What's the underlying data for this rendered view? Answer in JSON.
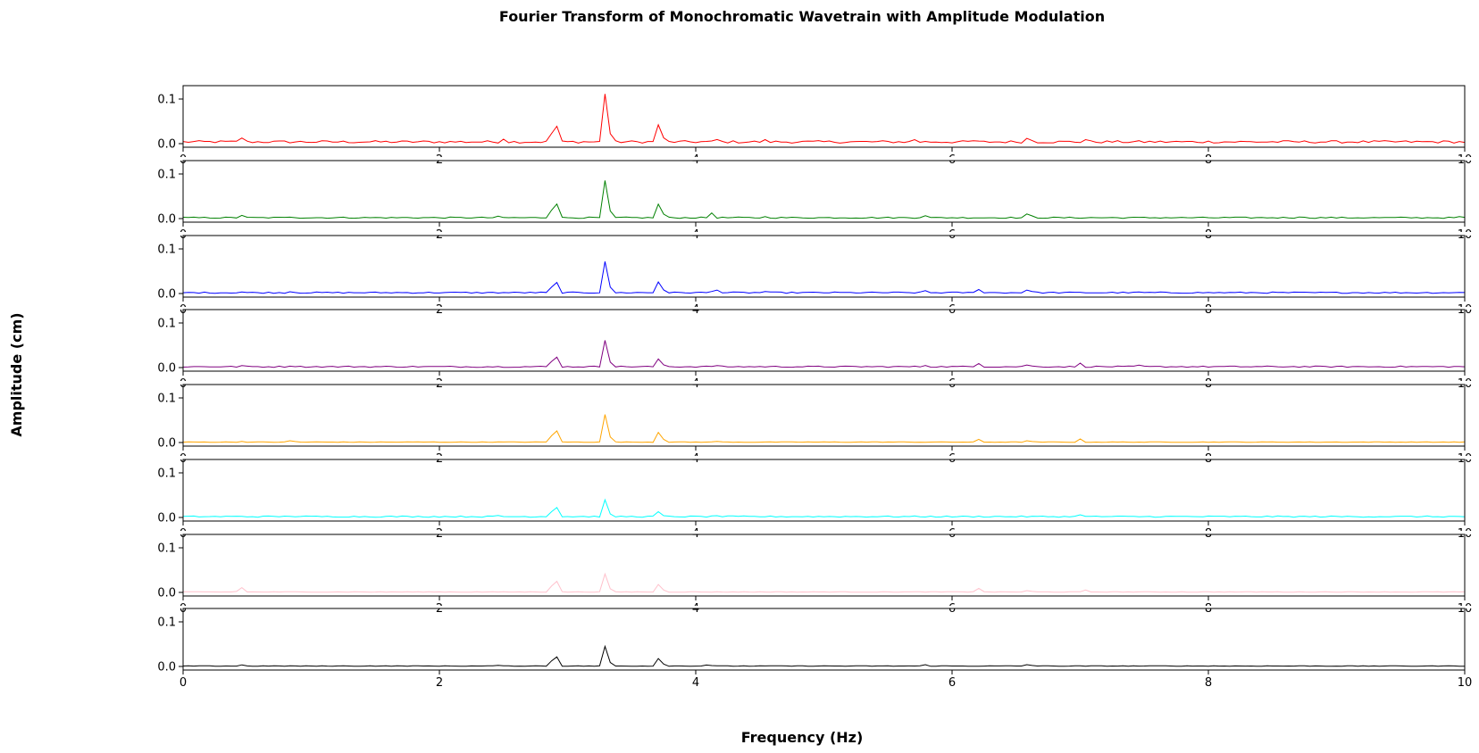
{
  "chart_data": {
    "type": "line",
    "title": "Fourier Transform of Monochromatic Wavetrain with Amplitude Modulation",
    "xlabel": "Frequency (Hz)",
    "ylabel": "Amplitude (cm)",
    "xlim": [
      0,
      10
    ],
    "ylim": [
      -0.008,
      0.13
    ],
    "xticks": [
      "0",
      "2",
      "4",
      "6",
      "8",
      "10"
    ],
    "yticks": [
      "0.0",
      "0.1"
    ],
    "grid": false,
    "panels": [
      {
        "color": "#ff0000",
        "peaks": [
          [
            0.45,
            0.014
          ],
          [
            2.5,
            0.01
          ],
          [
            2.9,
            0.06
          ],
          [
            3.3,
            0.124
          ],
          [
            3.72,
            0.052
          ],
          [
            4.15,
            0.014
          ],
          [
            4.55,
            0.01
          ],
          [
            5.7,
            0.01
          ],
          [
            6.15,
            0.01
          ],
          [
            6.6,
            0.018
          ],
          [
            7.05,
            0.01
          ]
        ],
        "floor": 0.004
      },
      {
        "color": "#008000",
        "peaks": [
          [
            0.45,
            0.008
          ],
          [
            0.85,
            0.005
          ],
          [
            2.45,
            0.006
          ],
          [
            2.9,
            0.05
          ],
          [
            3.3,
            0.095
          ],
          [
            3.72,
            0.04
          ],
          [
            4.12,
            0.013
          ],
          [
            4.55,
            0.005
          ],
          [
            5.78,
            0.008
          ],
          [
            6.6,
            0.016
          ],
          [
            8.7,
            0.004
          ],
          [
            9.95,
            0.005
          ]
        ],
        "floor": 0.002
      },
      {
        "color": "#0000ff",
        "peaks": [
          [
            0.45,
            0.004
          ],
          [
            0.85,
            0.006
          ],
          [
            2.9,
            0.038
          ],
          [
            3.3,
            0.08
          ],
          [
            3.72,
            0.032
          ],
          [
            4.15,
            0.012
          ],
          [
            4.55,
            0.005
          ],
          [
            5.78,
            0.008
          ],
          [
            6.2,
            0.01
          ],
          [
            6.6,
            0.012
          ],
          [
            7.45,
            0.004
          ]
        ],
        "floor": 0.002
      },
      {
        "color": "#800080",
        "peaks": [
          [
            0.45,
            0.005
          ],
          [
            0.85,
            0.005
          ],
          [
            2.9,
            0.036
          ],
          [
            3.3,
            0.068
          ],
          [
            3.72,
            0.024
          ],
          [
            4.15,
            0.007
          ],
          [
            5.78,
            0.006
          ],
          [
            6.2,
            0.01
          ],
          [
            6.6,
            0.009
          ],
          [
            7.0,
            0.01
          ],
          [
            7.45,
            0.006
          ]
        ],
        "floor": 0.002
      },
      {
        "color": "#ffa500",
        "peaks": [
          [
            0.45,
            0.003
          ],
          [
            0.85,
            0.006
          ],
          [
            2.9,
            0.04
          ],
          [
            3.3,
            0.07
          ],
          [
            3.72,
            0.028
          ],
          [
            4.15,
            0.004
          ],
          [
            6.2,
            0.008
          ],
          [
            6.6,
            0.006
          ],
          [
            7.0,
            0.008
          ]
        ],
        "floor": 0.001
      },
      {
        "color": "#00ffff",
        "peaks": [
          [
            0.45,
            0.003
          ],
          [
            0.85,
            0.004
          ],
          [
            2.45,
            0.005
          ],
          [
            2.9,
            0.034
          ],
          [
            3.3,
            0.044
          ],
          [
            3.72,
            0.016
          ],
          [
            4.15,
            0.006
          ],
          [
            7.0,
            0.006
          ]
        ],
        "floor": 0.002
      },
      {
        "color": "#ffc0cb",
        "peaks": [
          [
            0.45,
            0.012
          ],
          [
            2.9,
            0.038
          ],
          [
            3.3,
            0.046
          ],
          [
            3.72,
            0.022
          ],
          [
            6.2,
            0.01
          ],
          [
            6.6,
            0.006
          ],
          [
            7.05,
            0.006
          ]
        ],
        "floor": 0.001
      },
      {
        "color": "#000000",
        "peaks": [
          [
            0.45,
            0.004
          ],
          [
            2.45,
            0.003
          ],
          [
            2.9,
            0.033
          ],
          [
            3.3,
            0.05
          ],
          [
            3.72,
            0.022
          ],
          [
            4.1,
            0.005
          ],
          [
            5.78,
            0.005
          ],
          [
            6.6,
            0.006
          ]
        ],
        "floor": 0.001
      }
    ]
  }
}
